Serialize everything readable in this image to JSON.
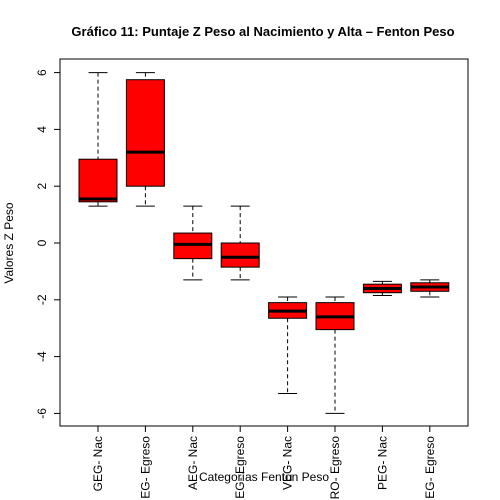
{
  "chart_data": {
    "type": "boxplot",
    "title": "Gráfico 11: Puntaje Z Peso al Nacimiento y Alta – Fenton Peso",
    "xlabel": "Categorías Fenton Peso",
    "ylabel": "Valores Z Peso",
    "ylim": [
      -6.5,
      6.5
    ],
    "yticks": [
      -6,
      -4,
      -2,
      0,
      2,
      4,
      6
    ],
    "box_color": "#ff0000",
    "categories": [
      "GEG- Nac",
      "GEG- Egreso",
      "AEG- Nac",
      "AEG- Egreso",
      "MEG- Nac",
      "MEG- Egreso",
      "PEG- Nac",
      "PEG- Egreso"
    ],
    "tick_labels_visible": [
      "GEG- Nac",
      "EG- Egreso",
      "AEG- Nac",
      "EG- Egreso",
      "VEG- Nac",
      "RO- Egreso",
      "PEG- Nac",
      "EG- Egreso"
    ],
    "boxes": [
      {
        "min": 1.3,
        "q1": 1.45,
        "median": 1.55,
        "q3": 2.95,
        "max": 6.0
      },
      {
        "min": 1.3,
        "q1": 2.0,
        "median": 3.2,
        "q3": 5.75,
        "max": 6.0
      },
      {
        "min": -1.3,
        "q1": -0.55,
        "median": -0.05,
        "q3": 0.35,
        "max": 1.3
      },
      {
        "min": -1.3,
        "q1": -0.85,
        "median": -0.5,
        "q3": 0.0,
        "max": 1.3
      },
      {
        "min": -5.3,
        "q1": -2.65,
        "median": -2.4,
        "q3": -2.1,
        "max": -1.9
      },
      {
        "min": -6.0,
        "q1": -3.05,
        "median": -2.6,
        "q3": -2.1,
        "max": -1.9
      },
      {
        "min": -1.85,
        "q1": -1.75,
        "median": -1.6,
        "q3": -1.45,
        "max": -1.35
      },
      {
        "min": -1.9,
        "q1": -1.7,
        "median": -1.55,
        "q3": -1.4,
        "max": -1.3
      }
    ]
  }
}
